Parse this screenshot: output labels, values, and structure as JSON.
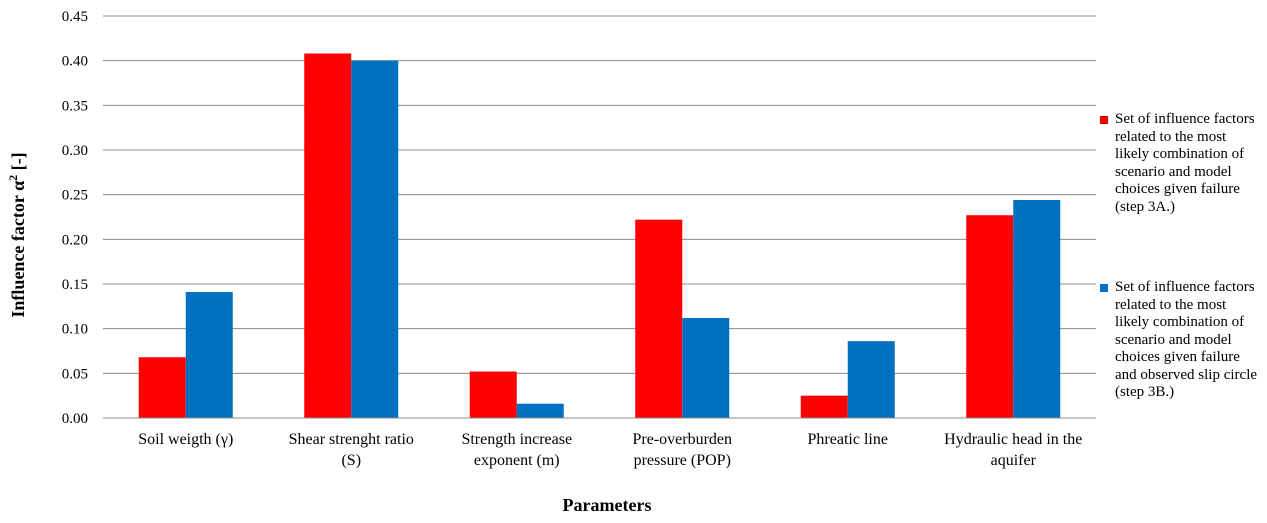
{
  "chart_data": {
    "type": "bar",
    "title": "",
    "xlabel": "Parameters",
    "ylabel_main": "Influence factor α",
    "ylabel_sup": "2",
    "ylabel_tail": " [-]",
    "ylim": [
      0,
      0.45
    ],
    "yticks": [
      "0.00",
      "0.05",
      "0.10",
      "0.15",
      "0.20",
      "0.25",
      "0.30",
      "0.35",
      "0.40",
      "0.45"
    ],
    "ytick_values": [
      0,
      0.05,
      0.1,
      0.15,
      0.2,
      0.25,
      0.3,
      0.35,
      0.4,
      0.45
    ],
    "grid": true,
    "legend_position": "right",
    "categories": [
      [
        "Soil weigth (γ)"
      ],
      [
        "Shear strenght ratio",
        "(S)"
      ],
      [
        "Strength increase",
        "exponent (m)"
      ],
      [
        "Pre-overburden",
        "pressure (POP)"
      ],
      [
        "Phreatic line"
      ],
      [
        "Hydraulic head in the",
        "aquifer"
      ]
    ],
    "series": [
      {
        "name": "Set of influence factors related to the most likely combination of scenario and model choices given failure (step 3A.)",
        "name_lines": [
          "Set of influence factors",
          "related to the most",
          "likely combination of",
          "scenario and model",
          "choices given failure",
          "(step 3A.)"
        ],
        "color": "#FF0000",
        "values": [
          0.068,
          0.408,
          0.052,
          0.222,
          0.025,
          0.227
        ]
      },
      {
        "name": "Set of influence factors related to the most likely combination of scenario and model choices given failure and observed slip circle (step 3B.)",
        "name_lines": [
          "Set of influence factors",
          "related to the most",
          "likely combination of",
          "scenario and model",
          "choices given failure",
          "and observed slip circle",
          "(step 3B.)"
        ],
        "color": "#0070C0",
        "values": [
          0.141,
          0.4,
          0.016,
          0.112,
          0.086,
          0.244
        ]
      }
    ]
  }
}
